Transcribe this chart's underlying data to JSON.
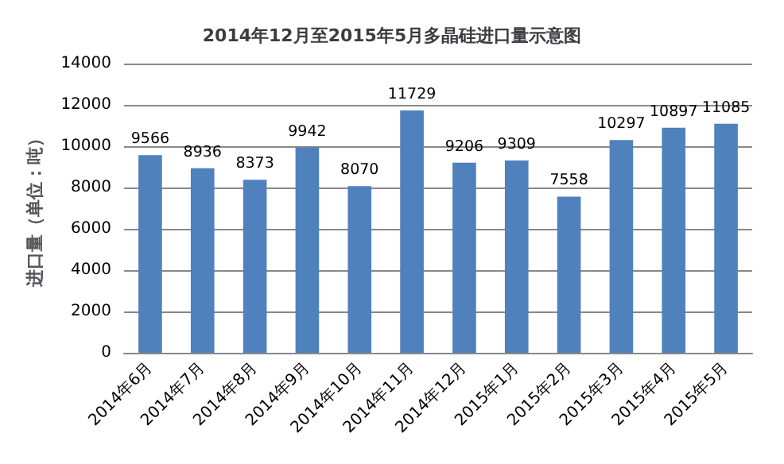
{
  "chart_data": {
    "type": "bar",
    "title": "2014年12月至2015年5月多晶硅进口量示意图",
    "ylabel": "进口量（单位：吨）",
    "categories": [
      "2014年6月",
      "2014年7月",
      "2014年8月",
      "2014年9月",
      "2014年10月",
      "2014年11月",
      "2014年12月",
      "2015年1月",
      "2015年2月",
      "2015年3月",
      "2015年4月",
      "2015年5月"
    ],
    "values": [
      9566,
      8936,
      8373,
      9942,
      8070,
      11729,
      9206,
      9309,
      7558,
      10297,
      10897,
      11085
    ],
    "color": "#4f81bd",
    "ylim": [
      0,
      14000
    ],
    "yticks": [
      0,
      2000,
      4000,
      6000,
      8000,
      10000,
      12000,
      14000
    ],
    "grid": "y",
    "data_labels": true
  }
}
